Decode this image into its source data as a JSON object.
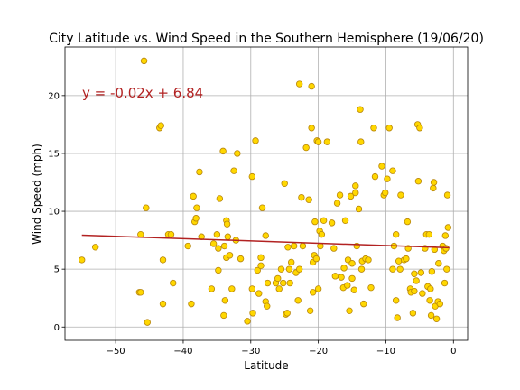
{
  "chart_data": {
    "type": "scatter",
    "title": "City Latitude vs. Wind Speed in the Southern Hemisphere (19/06/20)",
    "xlabel": "Latitude",
    "ylabel": "Wind Speed (mph)",
    "xlim": [
      -57.5,
      2.1
    ],
    "ylim": [
      -1.15,
      24.2
    ],
    "xticks": [
      -50,
      -40,
      -30,
      -20,
      -10,
      0
    ],
    "yticks": [
      0,
      5,
      10,
      15,
      20
    ],
    "grid": true,
    "marker_color": "#ffd700",
    "marker_edge_color": "#b8860b",
    "regression": {
      "equation": "y = -0.02x + 6.84",
      "slope": -0.02,
      "intercept": 6.84,
      "x_range": [
        -55.0,
        -0.6
      ],
      "color": "#b22222"
    },
    "points": [
      [
        -55.0,
        5.8
      ],
      [
        -53.0,
        6.9
      ],
      [
        -46.5,
        3.0
      ],
      [
        -46.3,
        8.0
      ],
      [
        -46.3,
        3.0
      ],
      [
        -45.8,
        23.0
      ],
      [
        -45.5,
        10.3
      ],
      [
        -45.3,
        0.4
      ],
      [
        -43.5,
        17.2
      ],
      [
        -43.3,
        17.4
      ],
      [
        -43.0,
        5.8
      ],
      [
        -43.0,
        2.0
      ],
      [
        -42.2,
        8.0
      ],
      [
        -41.8,
        8.0
      ],
      [
        -41.5,
        3.8
      ],
      [
        -39.3,
        7.0
      ],
      [
        -38.8,
        2.0
      ],
      [
        -38.5,
        11.3
      ],
      [
        -38.3,
        9.1
      ],
      [
        -38.1,
        9.4
      ],
      [
        -38.0,
        10.3
      ],
      [
        -37.6,
        13.4
      ],
      [
        -37.3,
        7.8
      ],
      [
        -35.8,
        3.3
      ],
      [
        -35.5,
        7.2
      ],
      [
        -35.0,
        8.0
      ],
      [
        -34.8,
        6.8
      ],
      [
        -34.8,
        4.9
      ],
      [
        -34.6,
        11.1
      ],
      [
        -34.1,
        15.2
      ],
      [
        -34.0,
        1.0
      ],
      [
        -33.9,
        7.0
      ],
      [
        -33.8,
        2.3
      ],
      [
        -33.6,
        6.0
      ],
      [
        -33.6,
        9.2
      ],
      [
        -33.5,
        8.9
      ],
      [
        -33.4,
        7.8
      ],
      [
        -33.1,
        6.2
      ],
      [
        -32.8,
        3.3
      ],
      [
        -32.5,
        13.5
      ],
      [
        -32.2,
        7.5
      ],
      [
        -32.0,
        15.0
      ],
      [
        -31.5,
        5.9
      ],
      [
        -30.5,
        0.5
      ],
      [
        -29.8,
        3.3
      ],
      [
        -29.8,
        13.0
      ],
      [
        -29.7,
        1.2
      ],
      [
        -29.3,
        16.1
      ],
      [
        -29.0,
        4.9
      ],
      [
        -28.8,
        2.9
      ],
      [
        -28.5,
        6.0
      ],
      [
        -28.5,
        5.3
      ],
      [
        -28.3,
        10.3
      ],
      [
        -27.8,
        7.9
      ],
      [
        -27.8,
        2.2
      ],
      [
        -27.6,
        1.8
      ],
      [
        -27.5,
        3.8
      ],
      [
        -26.3,
        3.8
      ],
      [
        -26.0,
        4.2
      ],
      [
        -25.8,
        3.3
      ],
      [
        -25.5,
        5.0
      ],
      [
        -25.2,
        3.8
      ],
      [
        -25.0,
        12.4
      ],
      [
        -24.8,
        1.1
      ],
      [
        -24.6,
        1.2
      ],
      [
        -24.5,
        6.9
      ],
      [
        -24.3,
        5.0
      ],
      [
        -24.2,
        3.8
      ],
      [
        -24.0,
        5.6
      ],
      [
        -23.6,
        7.0
      ],
      [
        -23.3,
        4.7
      ],
      [
        -23.0,
        2.3
      ],
      [
        -22.8,
        21.0
      ],
      [
        -22.8,
        5.0
      ],
      [
        -22.5,
        11.2
      ],
      [
        -22.3,
        7.0
      ],
      [
        -21.8,
        15.5
      ],
      [
        -21.4,
        11.0
      ],
      [
        -21.2,
        1.4
      ],
      [
        -21.0,
        20.8
      ],
      [
        -21.0,
        17.2
      ],
      [
        -20.8,
        5.6
      ],
      [
        -20.8,
        3.0
      ],
      [
        -20.6,
        6.2
      ],
      [
        -20.5,
        9.1
      ],
      [
        -20.3,
        5.9
      ],
      [
        -20.2,
        16.1
      ],
      [
        -20.0,
        16.0
      ],
      [
        -20.0,
        3.3
      ],
      [
        -19.8,
        8.3
      ],
      [
        -19.7,
        7.0
      ],
      [
        -19.5,
        8.0
      ],
      [
        -19.2,
        9.2
      ],
      [
        -18.7,
        16.0
      ],
      [
        -18.0,
        9.0
      ],
      [
        -17.7,
        6.8
      ],
      [
        -17.5,
        4.4
      ],
      [
        -17.2,
        10.7
      ],
      [
        -16.8,
        11.4
      ],
      [
        -16.6,
        4.3
      ],
      [
        -16.3,
        3.4
      ],
      [
        -16.2,
        5.1
      ],
      [
        -16.0,
        9.2
      ],
      [
        -15.7,
        3.6
      ],
      [
        -15.6,
        5.8
      ],
      [
        -15.4,
        1.4
      ],
      [
        -15.2,
        11.3
      ],
      [
        -15.0,
        5.5
      ],
      [
        -15.0,
        4.2
      ],
      [
        -14.7,
        3.2
      ],
      [
        -14.5,
        12.2
      ],
      [
        -14.5,
        11.6
      ],
      [
        -14.3,
        7.0
      ],
      [
        -14.0,
        10.2
      ],
      [
        -13.8,
        18.8
      ],
      [
        -13.7,
        16.0
      ],
      [
        -13.6,
        5.0
      ],
      [
        -13.5,
        5.7
      ],
      [
        -13.3,
        2.0
      ],
      [
        -13.0,
        5.9
      ],
      [
        -12.6,
        5.8
      ],
      [
        -12.2,
        3.4
      ],
      [
        -11.8,
        17.2
      ],
      [
        -11.6,
        13.0
      ],
      [
        -10.6,
        13.9
      ],
      [
        -10.3,
        11.4
      ],
      [
        -10.1,
        11.6
      ],
      [
        -9.8,
        12.8
      ],
      [
        -9.5,
        17.2
      ],
      [
        -9.0,
        13.5
      ],
      [
        -9.0,
        5.0
      ],
      [
        -8.8,
        7.0
      ],
      [
        -8.5,
        8.0
      ],
      [
        -8.5,
        2.3
      ],
      [
        -8.3,
        0.8
      ],
      [
        -8.1,
        5.7
      ],
      [
        -7.9,
        5.0
      ],
      [
        -7.8,
        11.4
      ],
      [
        -7.3,
        5.8
      ],
      [
        -7.0,
        5.9
      ],
      [
        -6.8,
        9.1
      ],
      [
        -6.7,
        6.8
      ],
      [
        -6.4,
        3.3
      ],
      [
        -6.3,
        3.0
      ],
      [
        -6.0,
        1.2
      ],
      [
        -5.8,
        4.6
      ],
      [
        -5.8,
        3.1
      ],
      [
        -5.5,
        4.0
      ],
      [
        -5.3,
        17.5
      ],
      [
        -5.2,
        12.6
      ],
      [
        -5.0,
        17.2
      ],
      [
        -4.8,
        4.7
      ],
      [
        -4.6,
        2.9
      ],
      [
        -4.2,
        6.8
      ],
      [
        -4.0,
        8.0
      ],
      [
        -3.8,
        3.5
      ],
      [
        -3.6,
        8.0
      ],
      [
        -3.5,
        2.3
      ],
      [
        -3.4,
        3.3
      ],
      [
        -3.3,
        1.0
      ],
      [
        -3.2,
        4.8
      ],
      [
        -3.0,
        12.0
      ],
      [
        -2.9,
        12.5
      ],
      [
        -2.8,
        6.7
      ],
      [
        -2.7,
        1.8
      ],
      [
        -2.5,
        0.7
      ],
      [
        -2.3,
        2.2
      ],
      [
        -2.2,
        5.5
      ],
      [
        -2.0,
        2.0
      ],
      [
        -1.6,
        7.0
      ],
      [
        -1.4,
        6.6
      ],
      [
        -1.3,
        3.8
      ],
      [
        -1.2,
        7.9
      ],
      [
        -1.1,
        6.8
      ],
      [
        -1.0,
        5.0
      ],
      [
        -0.9,
        11.4
      ],
      [
        -0.8,
        8.6
      ]
    ]
  }
}
